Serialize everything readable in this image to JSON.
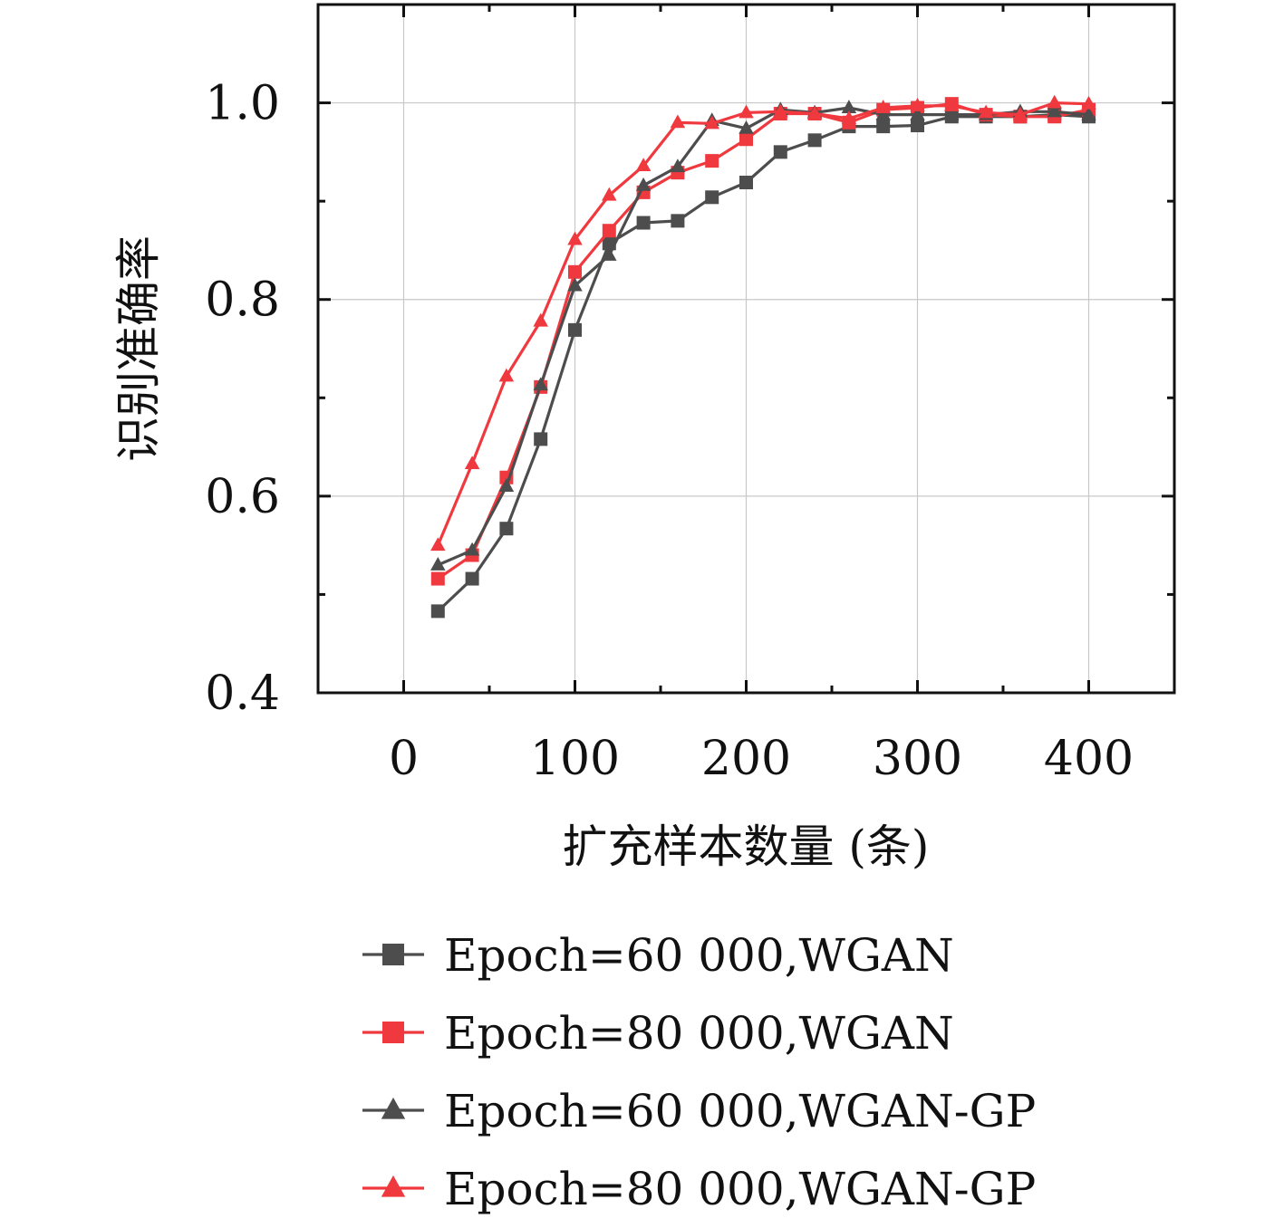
{
  "chart_data": {
    "type": "line",
    "xlabel": "扩充样本数量 (条)",
    "ylabel": "识别准确率",
    "xlim": [
      -50,
      450
    ],
    "ylim": [
      0.4,
      1.1
    ],
    "x_ticks": [
      0,
      100,
      200,
      300,
      400
    ],
    "y_ticks": [
      0.4,
      0.6,
      0.8,
      1.0
    ],
    "x_tick_labels": [
      "0",
      "100",
      "200",
      "300",
      "400"
    ],
    "y_tick_labels": [
      "0.4",
      "0.6",
      "0.8",
      "1.0"
    ],
    "grid": true,
    "legend_position": "bottom",
    "x": [
      20,
      40,
      60,
      80,
      100,
      120,
      140,
      160,
      180,
      200,
      220,
      240,
      260,
      280,
      300,
      320,
      340,
      360,
      380,
      400
    ],
    "series": [
      {
        "name": "Epoch=60 000,WGAN",
        "color": "#4d4d4d",
        "marker": "square",
        "values": [
          0.483,
          0.516,
          0.567,
          0.658,
          0.769,
          0.857,
          0.878,
          0.88,
          0.904,
          0.919,
          0.95,
          0.962,
          0.976,
          0.976,
          0.977,
          0.986,
          0.986,
          0.986,
          0.988,
          0.986
        ]
      },
      {
        "name": "Epoch=80 000,WGAN",
        "color": "#f0393e",
        "marker": "square",
        "values": [
          0.516,
          0.54,
          0.619,
          0.711,
          0.828,
          0.87,
          0.909,
          0.929,
          0.941,
          0.963,
          0.989,
          0.989,
          0.98,
          0.993,
          0.995,
          0.999,
          0.988,
          0.986,
          0.986,
          0.993
        ]
      },
      {
        "name": "Epoch=60 000,WGAN-GP",
        "color": "#4d4d4d",
        "marker": "triangle",
        "values": [
          0.53,
          0.545,
          0.61,
          0.713,
          0.814,
          0.845,
          0.916,
          0.935,
          0.982,
          0.974,
          0.993,
          0.99,
          0.995,
          0.988,
          0.988,
          0.988,
          0.988,
          0.991,
          0.991,
          0.988
        ]
      },
      {
        "name": "Epoch=80 000,WGAN-GP",
        "color": "#f0393e",
        "marker": "triangle",
        "values": [
          0.55,
          0.633,
          0.722,
          0.778,
          0.861,
          0.906,
          0.936,
          0.98,
          0.979,
          0.99,
          0.991,
          0.989,
          0.984,
          0.995,
          0.997,
          0.997,
          0.99,
          0.988,
          1.0,
          0.999
        ]
      }
    ]
  }
}
